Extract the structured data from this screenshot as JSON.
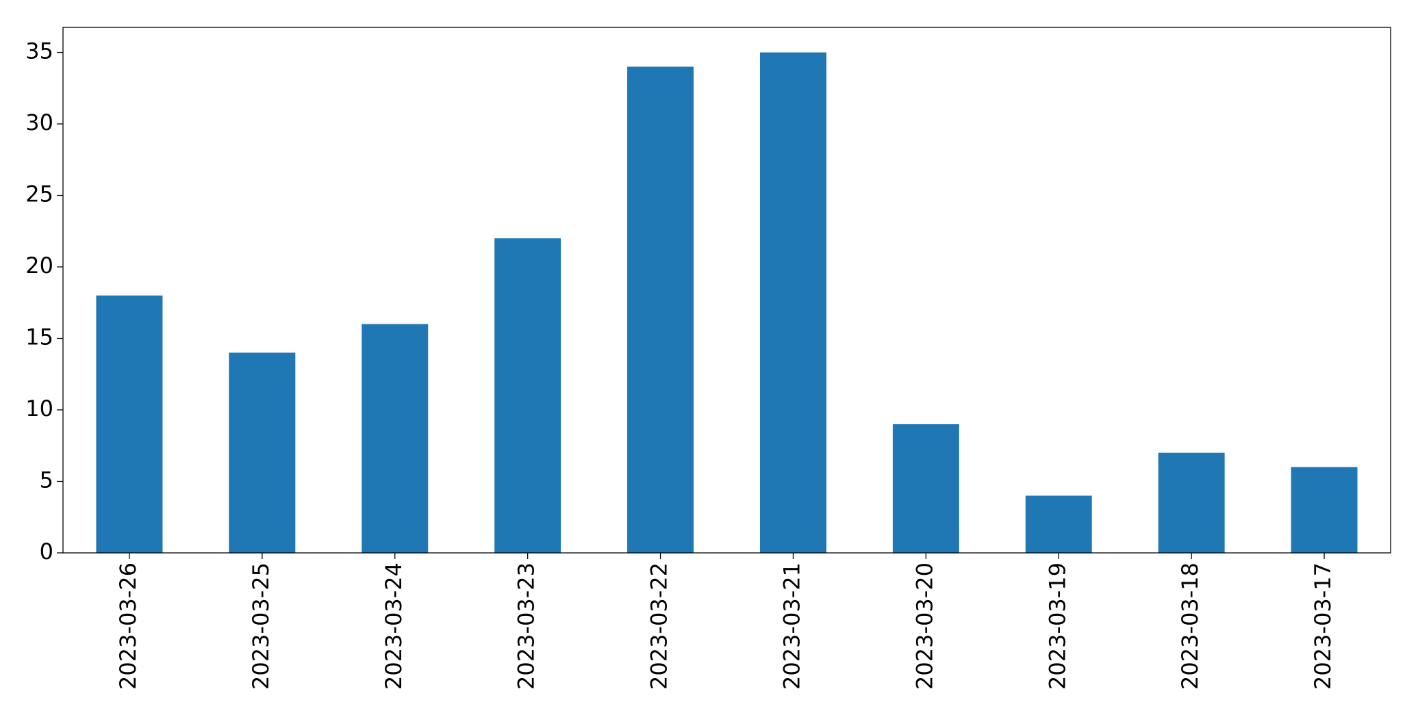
{
  "chart_data": {
    "type": "bar",
    "categories": [
      "2023-03-26",
      "2023-03-25",
      "2023-03-24",
      "2023-03-23",
      "2023-03-22",
      "2023-03-21",
      "2023-03-20",
      "2023-03-19",
      "2023-03-18",
      "2023-03-17"
    ],
    "values": [
      18,
      14,
      16,
      22,
      34,
      35,
      9,
      4,
      7,
      6
    ],
    "color": "#1f77b4",
    "ylim": [
      0,
      36.75
    ],
    "yticks": [
      0,
      5,
      10,
      15,
      20,
      25,
      30,
      35
    ],
    "grid": false
  }
}
